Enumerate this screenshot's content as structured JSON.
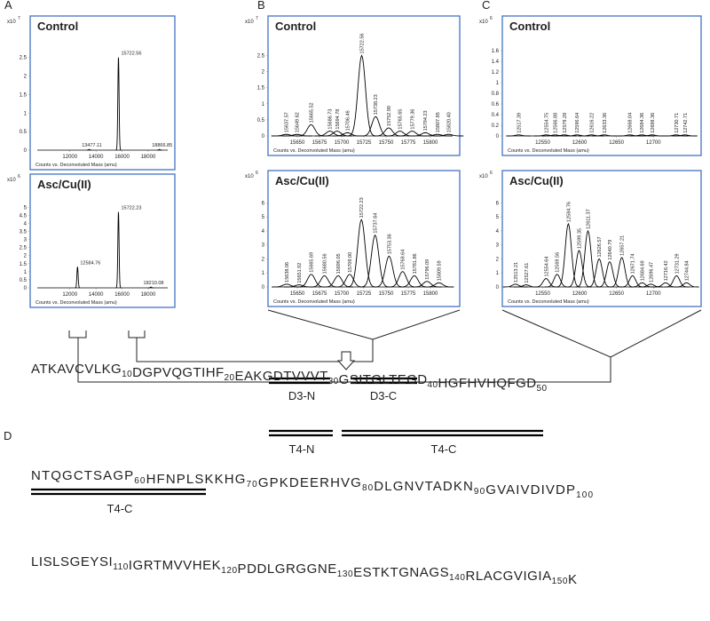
{
  "chart_data": [
    {
      "type": "spectrum",
      "panel": "A",
      "title": "Control",
      "y_multiplier": "x10",
      "y_exponent": "7",
      "x_label": "Counts vs. Deconvoluted Mass (amu)",
      "x": [
        13477.11,
        15722.56,
        18866.85
      ],
      "values": [
        0.02,
        2.5,
        0.02
      ],
      "value_labels": [
        "13477.11",
        "15722.56",
        "18866.85"
      ],
      "xlim": [
        9500,
        19500
      ],
      "xticks": [
        12000,
        14000,
        16000,
        18000
      ],
      "ylim": [
        0,
        2.9
      ],
      "yticks": [
        0,
        0.5,
        1,
        1.5,
        2,
        2.5
      ],
      "color": "#000000",
      "frame_color": "#4472c4"
    },
    {
      "type": "spectrum",
      "panel": "B",
      "title": "Control",
      "y_multiplier": "x10",
      "y_exponent": "7",
      "x_label": "Counts vs. Deconvoluted Mass (amu)",
      "x": [
        15637.57,
        15649.62,
        15665.52,
        15686.73,
        15694.78,
        15706.46,
        15722.56,
        15738.23,
        15752.9,
        15765.65,
        15779.36,
        15794.23,
        15807.85,
        15820.4
      ],
      "values": [
        0.05,
        0.05,
        0.35,
        0.15,
        0.15,
        0.1,
        2.5,
        0.6,
        0.25,
        0.15,
        0.15,
        0.1,
        0.05,
        0.05
      ],
      "value_labels": [
        "15637.57",
        "15649.62",
        "15665.52",
        "15686.73",
        "15694.78",
        "15706.46",
        "15722.56",
        "15738.23",
        "15752.90",
        "15765.65",
        "15779.36",
        "15794.23",
        "15807.85",
        "15820.40"
      ],
      "xlim": [
        15625,
        15825
      ],
      "xticks": [
        15650,
        15675,
        15700,
        15725,
        15750,
        15775,
        15800
      ],
      "ylim": [
        0,
        2.9
      ],
      "yticks": [
        0,
        0.5,
        1,
        1.5,
        2,
        2.5
      ],
      "color": "#000000",
      "frame_color": "#4472c4"
    },
    {
      "type": "spectrum",
      "panel": "C",
      "title": "Control",
      "y_multiplier": "x10",
      "y_exponent": "6",
      "x_label": "Counts vs. Deconvoluted Mass (amu)",
      "x": [
        12517.39,
        12554.75,
        12566.88,
        12579.28,
        12596.64,
        12616.22,
        12633.36,
        12668.04,
        12684.36,
        12698.36,
        12730.71,
        12742.71
      ],
      "values": [
        0.02,
        0.02,
        0.02,
        0.02,
        0.02,
        0.02,
        0.02,
        0.02,
        0.02,
        0.02,
        0.02,
        0.02
      ],
      "value_labels": [
        "12517.39",
        "12554.75",
        "12566.88",
        "12579.28",
        "12596.64",
        "12616.22",
        "12633.36",
        "12668.04",
        "12684.36",
        "12698.36",
        "12730.71",
        "12742.71"
      ],
      "xlim": [
        12505,
        12755
      ],
      "xticks": [
        12550,
        12600,
        12650,
        12700
      ],
      "ylim": [
        0,
        1.75
      ],
      "yticks": [
        0,
        0.2,
        0.4,
        0.6,
        0.8,
        1,
        1.2,
        1.4,
        1.6
      ],
      "color": "#000000",
      "frame_color": "#4472c4"
    },
    {
      "type": "spectrum",
      "title": "Asc/Cu(II)",
      "y_multiplier": "x10",
      "y_exponent": "6",
      "x_label": "Counts vs. Deconvoluted Mass (amu)",
      "x": [
        12584.76,
        15722.23,
        18210.08
      ],
      "values": [
        1.3,
        4.7,
        0.05
      ],
      "value_labels": [
        "12584.76",
        "15722.23",
        "18210.08"
      ],
      "xlim": [
        9500,
        19500
      ],
      "xticks": [
        12000,
        14000,
        16000,
        18000
      ],
      "ylim": [
        0,
        5.4
      ],
      "yticks": [
        0,
        0.5,
        1,
        1.5,
        2,
        2.5,
        3,
        3.5,
        4,
        4.5,
        5
      ],
      "color": "#000000",
      "frame_color": "#4472c4"
    },
    {
      "type": "spectrum",
      "title": "Asc/Cu(II)",
      "y_multiplier": "x10",
      "y_exponent": "6",
      "x_label": "Counts vs. Deconvoluted Mass (amu)",
      "x": [
        15638.06,
        15651.92,
        15665.69,
        15680.56,
        15696.05,
        15709.0,
        15722.23,
        15737.64,
        15753.36,
        15768.64,
        15781.86,
        15796.09,
        15809.59
      ],
      "values": [
        0.2,
        0.15,
        0.9,
        0.8,
        0.8,
        0.9,
        4.8,
        3.7,
        2.2,
        1.1,
        0.8,
        0.4,
        0.3
      ],
      "value_labels": [
        "15638.06",
        "15651.92",
        "15665.69",
        "15680.56",
        "15696.05",
        "15709.00",
        "15722.23",
        "15737.64",
        "15753.36",
        "15768.64",
        "15781.86",
        "15796.09",
        "15809.59"
      ],
      "xlim": [
        15625,
        15825
      ],
      "xticks": [
        15650,
        15675,
        15700,
        15725,
        15750,
        15775,
        15800
      ],
      "ylim": [
        0,
        6.4
      ],
      "yticks": [
        0,
        1,
        2,
        3,
        4,
        5,
        6
      ],
      "color": "#000000",
      "frame_color": "#4472c4"
    },
    {
      "type": "spectrum",
      "title": "Asc/Cu(II)",
      "y_multiplier": "x10",
      "y_exponent": "6",
      "x_label": "Counts vs. Deconvoluted Mass (amu)",
      "x": [
        12513.21,
        12527.61,
        12554.64,
        12569.56,
        12584.76,
        12599.35,
        12611.37,
        12626.57,
        12640.79,
        12657.21,
        12671.74,
        12684.69,
        12696.47,
        12716.42,
        12731.29,
        12744.84
      ],
      "values": [
        0.2,
        0.15,
        0.6,
        0.9,
        4.5,
        2.6,
        4.0,
        2.0,
        1.8,
        2.1,
        0.8,
        0.3,
        0.2,
        0.3,
        0.8,
        0.3
      ],
      "value_labels": [
        "12513.21",
        "12527.61",
        "12554.64",
        "12569.56",
        "12584.76",
        "12599.35",
        "12611.37",
        "12626.57",
        "12640.79",
        "12657.21",
        "12671.74",
        "12684.69",
        "12696.47",
        "12716.42",
        "12731.29",
        "12744.84"
      ],
      "xlim": [
        12505,
        12755
      ],
      "xticks": [
        12550,
        12600,
        12650,
        12700
      ],
      "ylim": [
        0,
        6.4
      ],
      "yticks": [
        0,
        1,
        2,
        3,
        4,
        5,
        6
      ],
      "color": "#000000",
      "frame_color": "#4472c4"
    }
  ],
  "sequence": {
    "panel": "D",
    "lines": [
      [
        {
          "res": "ATKAVCVLKG",
          "num": 10
        },
        {
          "res": "DGPVQGTIHF",
          "num": 20
        },
        {
          "res": "EAKGDTVVVT",
          "num": 30
        },
        {
          "res": "GSITGLTEGD",
          "num": 40
        },
        {
          "res": "HGFHVHQFGD",
          "num": 50
        }
      ],
      [
        {
          "res": "NTQGCTSAGP",
          "num": 60
        },
        {
          "res": "HFNPLSKKHG",
          "num": 70
        },
        {
          "res": "GPKDEERHVG",
          "num": 80
        },
        {
          "res": "DLGNVTADKN",
          "num": 90
        },
        {
          "res": "GVAIVDIVDP",
          "num": 100
        }
      ],
      [
        {
          "res": "LISLSGEYSI",
          "num": 110
        },
        {
          "res": "IGRTMVVHEK",
          "num": 120
        },
        {
          "res": "PDDLGRGGNE",
          "num": 130
        },
        {
          "res": "ESTKTGNAGS",
          "num": 140
        },
        {
          "res": "RLACGVIGIA",
          "num": 150
        },
        {
          "res": "K"
        }
      ]
    ],
    "fragments": [
      "D3-N",
      "D3-C",
      "T4-N",
      "T4-C",
      "T4-C"
    ]
  }
}
